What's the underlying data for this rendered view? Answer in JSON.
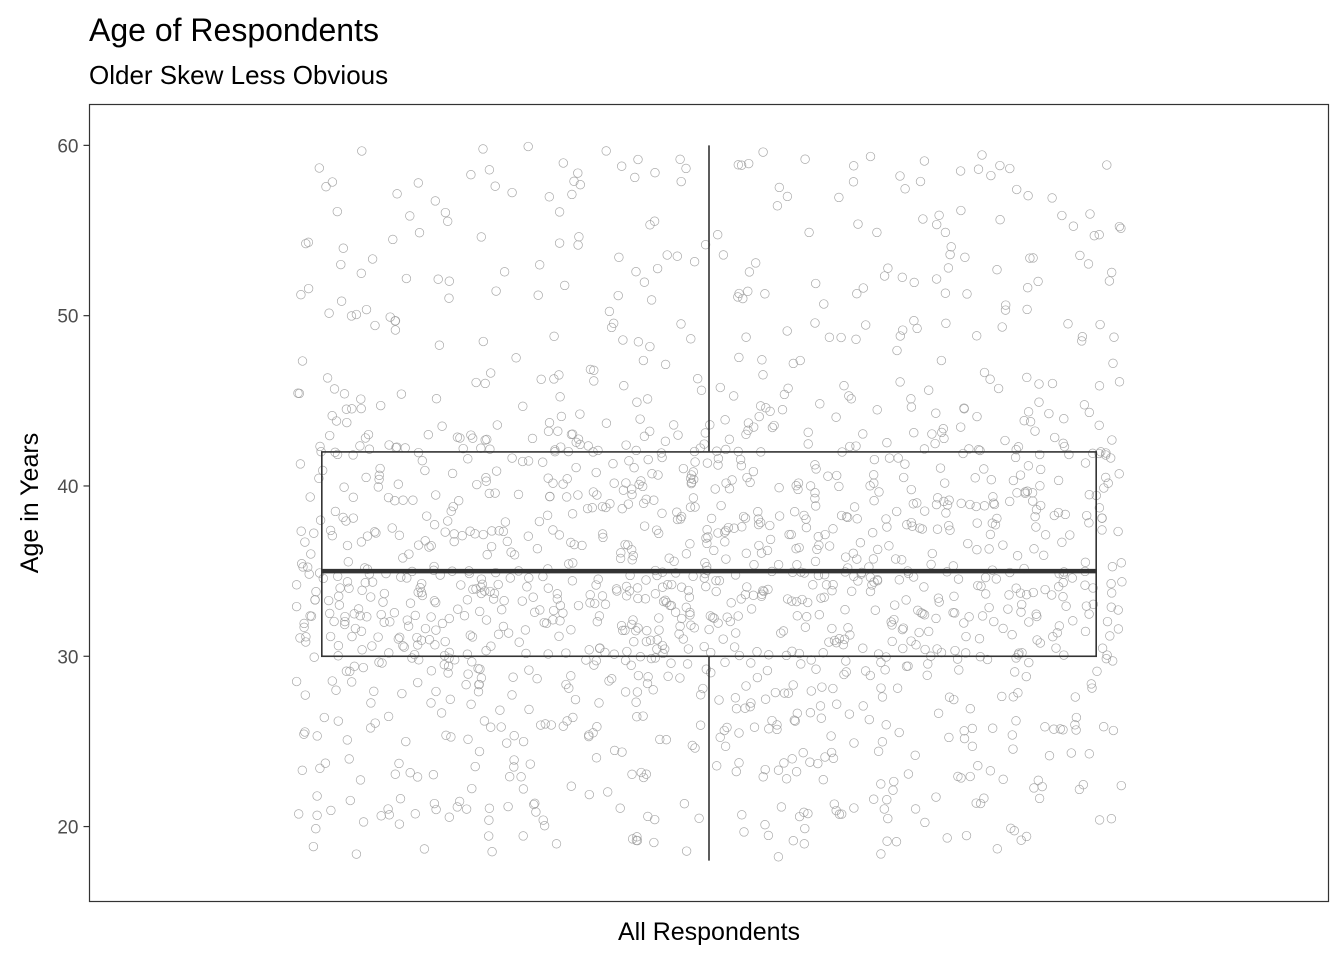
{
  "chart_data": {
    "type": "boxplot",
    "title": "Age of Respondents",
    "subtitle": "Older Skew Less Obvious",
    "xlabel": "",
    "ylabel": "Age in Years",
    "categories": [
      "All Respondents"
    ],
    "ylim": [
      15.6,
      62.4
    ],
    "yticks": [
      20,
      30,
      40,
      50,
      60
    ],
    "grid": false,
    "box": {
      "min": 18,
      "q1": 30,
      "median": 35,
      "q3": 42,
      "max": 60
    },
    "jitter": {
      "n": 1500,
      "spread": 0.4,
      "note": "individual respondent ages, jittered horizontally"
    },
    "colors": {
      "points": "#9a9a9a",
      "box": "#333333",
      "panel_border": "#333333",
      "tick_text": "#4d4d4d"
    }
  }
}
